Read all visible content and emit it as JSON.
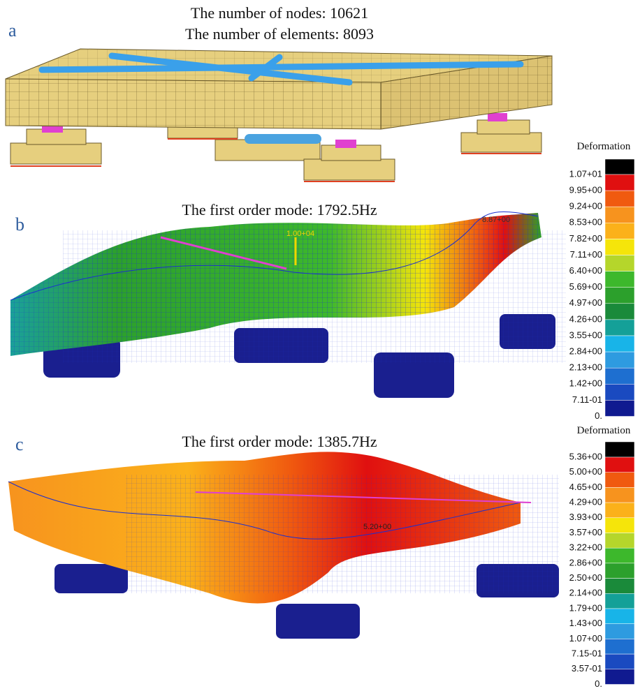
{
  "panels": [
    {
      "label": "a",
      "title_lines": [
        "The number of nodes: 10621",
        "The number of elements: 8093"
      ]
    },
    {
      "label": "b",
      "title": "The first order mode: 1792.5Hz",
      "annotations": [
        "1.00+04",
        "8.87+00"
      ],
      "legend": {
        "title": "Deformation",
        "labels": [
          "1.07+01",
          "9.95+00",
          "9.24+00",
          "8.53+00",
          "7.82+00",
          "7.11+00",
          "6.40+00",
          "5.69+00",
          "4.97+00",
          "4.26+00",
          "3.55+00",
          "2.84+00",
          "2.13+00",
          "1.42+00",
          "7.11-01",
          "0."
        ]
      }
    },
    {
      "label": "c",
      "title": "The first order mode: 1385.7Hz",
      "annotations": [
        "5.20+00"
      ],
      "legend": {
        "title": "Deformation",
        "labels": [
          "5.36+00",
          "5.00+00",
          "4.65+00",
          "4.29+00",
          "3.93+00",
          "3.57+00",
          "3.22+00",
          "2.86+00",
          "2.50+00",
          "2.14+00",
          "1.79+00",
          "1.43+00",
          "1.07+00",
          "7.15-01",
          "3.57-01",
          "0."
        ]
      }
    }
  ]
}
